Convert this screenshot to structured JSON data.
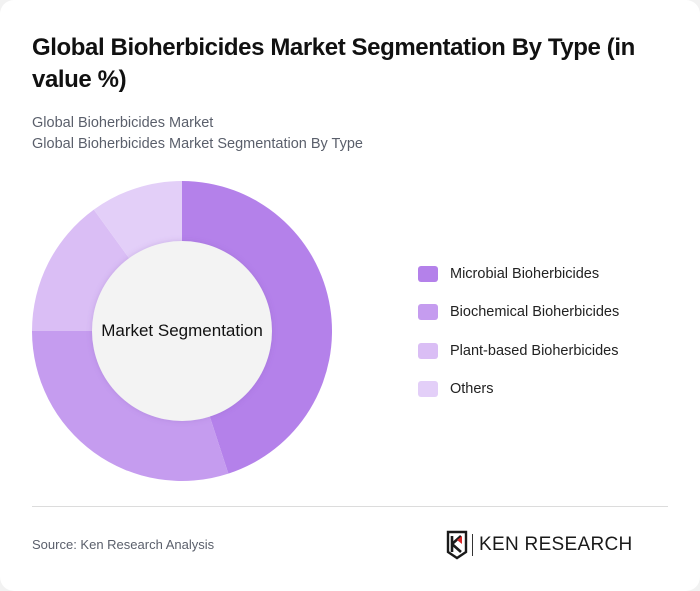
{
  "header": {
    "title": "Global Bioherbicides Market Segmentation By Type (in value %)",
    "subtitle_line1": "Global Bioherbicides Market",
    "subtitle_line2": "Global Bioherbicides Market Segmentation By Type"
  },
  "chart": {
    "center_label": "Market Segmentation"
  },
  "legend": [
    {
      "label": "Microbial Bioherbicides",
      "color": "#b481ea"
    },
    {
      "label": "Biochemical Bioherbicides",
      "color": "#c59cef"
    },
    {
      "label": "Plant-based Bioherbicides",
      "color": "#dabef5"
    },
    {
      "label": "Others",
      "color": "#e3cff8"
    }
  ],
  "footer": {
    "source": "Source: Ken Research Analysis",
    "logo_text": "KEN RESEARCH"
  },
  "chart_data": {
    "type": "pie",
    "variant": "donut",
    "title": "Global Bioherbicides Market Segmentation By Type (in value %)",
    "center_label": "Market Segmentation",
    "categories": [
      "Microbial Bioherbicides",
      "Biochemical Bioherbicides",
      "Plant-based Bioherbicides",
      "Others"
    ],
    "values": [
      45,
      30,
      15,
      10
    ],
    "colors": [
      "#b481ea",
      "#c59cef",
      "#dabef5",
      "#e3cff8"
    ],
    "unit": "%",
    "legend_position": "right",
    "start_angle": "12 o'clock, clockwise"
  }
}
